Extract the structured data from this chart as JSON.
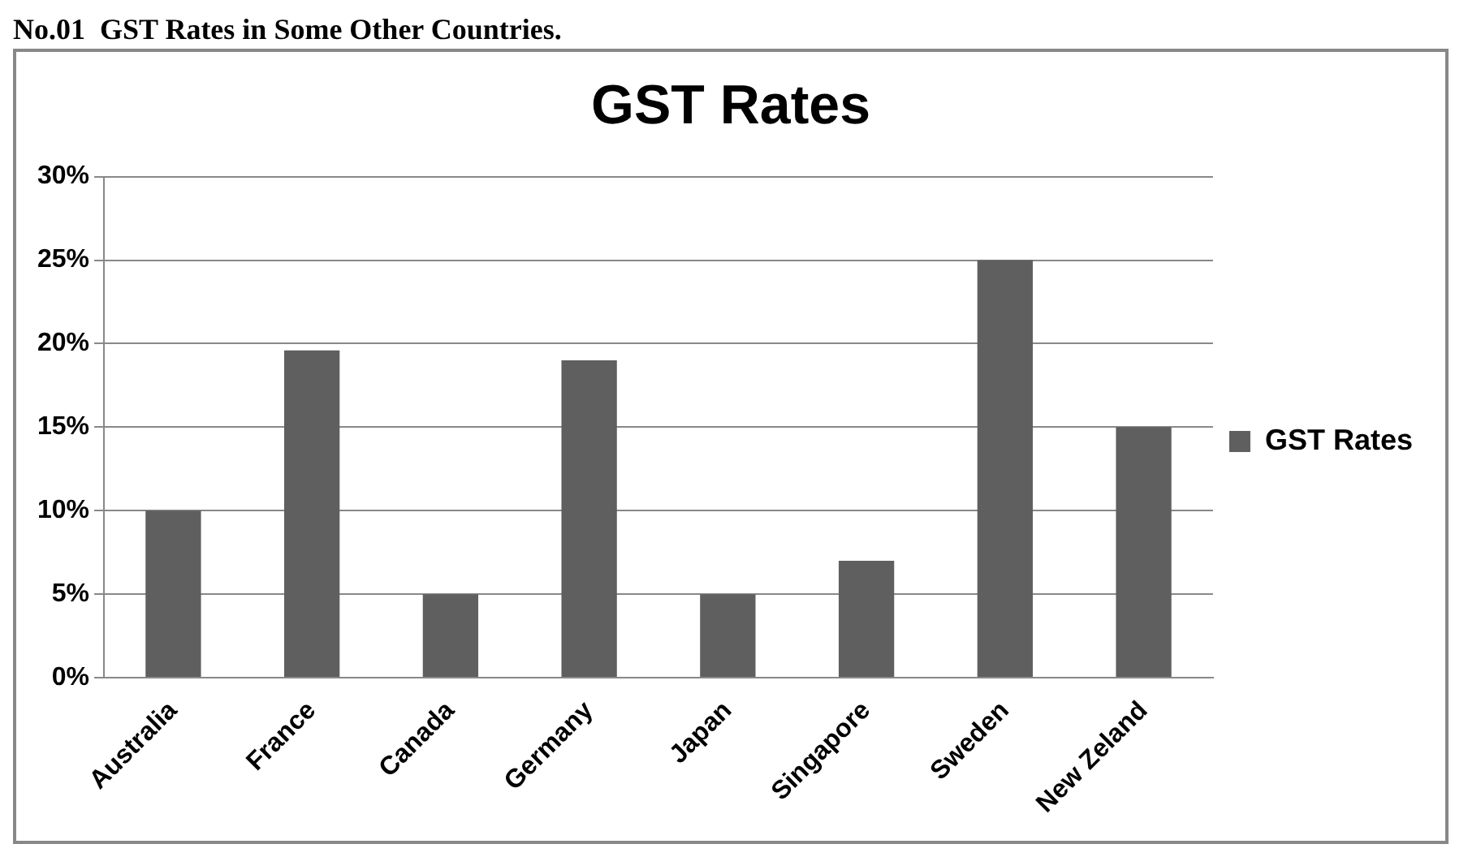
{
  "chart_data": {
    "type": "bar",
    "title": "GST Rates",
    "annotations": [
      "No.01  GST Rates in Some Other Countries."
    ],
    "categories": [
      "Australia",
      "France",
      "Canada",
      "Germany",
      "Japan",
      "Singapore",
      "Sweden",
      "New Zeland"
    ],
    "series": [
      {
        "name": "GST Rates",
        "color": "#5f5f5f",
        "values": [
          10,
          19.6,
          5,
          19,
          5,
          7,
          25,
          15
        ]
      }
    ],
    "ylim": [
      0,
      30
    ],
    "yticks": [
      {
        "value": 0,
        "label": "0%"
      },
      {
        "value": 5,
        "label": "5%"
      },
      {
        "value": 10,
        "label": "10%"
      },
      {
        "value": 15,
        "label": "15%"
      },
      {
        "value": 20,
        "label": "20%"
      },
      {
        "value": 25,
        "label": "25%"
      },
      {
        "value": 30,
        "label": "30%"
      }
    ],
    "grid": "y",
    "legend": "right"
  }
}
